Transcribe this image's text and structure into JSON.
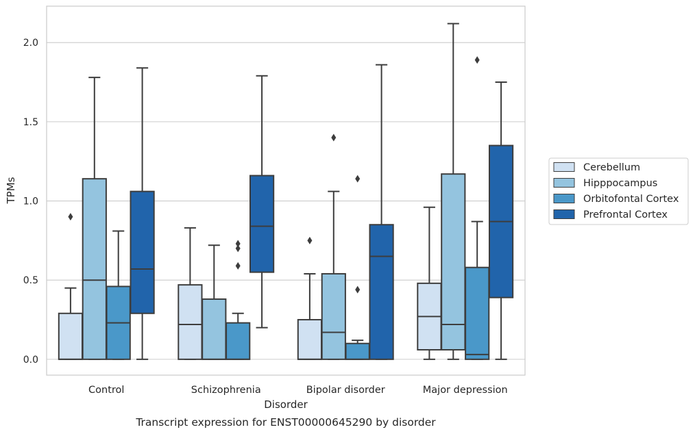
{
  "chart_data": {
    "type": "boxplot",
    "title": "",
    "caption": "Transcript expression for ENST00000645290 by disorder",
    "xlabel": "Disorder",
    "ylabel": "TPMs",
    "ylim": [
      -0.1,
      2.23
    ],
    "yticks": [
      "0.0",
      "0.5",
      "1.0",
      "1.5",
      "2.0"
    ],
    "grid": "horizontal",
    "legend_position": "right",
    "categories": [
      "Control",
      "Schizophrenia",
      "Bipolar disorder",
      "Major depression"
    ],
    "series": [
      {
        "name": "Cerebellum",
        "color": "#d0e1f2",
        "boxes": [
          {
            "low": 0.0,
            "q1": 0.0,
            "median": 0.0,
            "q3": 0.29,
            "high": 0.45,
            "outliers": [
              0.9
            ]
          },
          {
            "low": 0.0,
            "q1": 0.0,
            "median": 0.22,
            "q3": 0.47,
            "high": 0.83,
            "outliers": []
          },
          {
            "low": 0.0,
            "q1": 0.0,
            "median": 0.0,
            "q3": 0.25,
            "high": 0.54,
            "outliers": [
              0.75
            ]
          },
          {
            "low": 0.0,
            "q1": 0.06,
            "median": 0.27,
            "q3": 0.48,
            "high": 0.96,
            "outliers": []
          }
        ]
      },
      {
        "name": "Hipppocampus",
        "color": "#94c4df",
        "boxes": [
          {
            "low": 0.0,
            "q1": 0.0,
            "median": 0.5,
            "q3": 1.14,
            "high": 1.78,
            "outliers": []
          },
          {
            "low": 0.0,
            "q1": 0.0,
            "median": 0.0,
            "q3": 0.38,
            "high": 0.72,
            "outliers": []
          },
          {
            "low": 0.0,
            "q1": 0.0,
            "median": 0.17,
            "q3": 0.54,
            "high": 1.06,
            "outliers": [
              1.4
            ]
          },
          {
            "low": 0.0,
            "q1": 0.06,
            "median": 0.22,
            "q3": 1.17,
            "high": 2.12,
            "outliers": []
          }
        ]
      },
      {
        "name": "Orbitofontal Cortex",
        "color": "#4a98c9",
        "boxes": [
          {
            "low": 0.0,
            "q1": 0.0,
            "median": 0.23,
            "q3": 0.46,
            "high": 0.81,
            "outliers": []
          },
          {
            "low": 0.0,
            "q1": 0.0,
            "median": 0.0,
            "q3": 0.23,
            "high": 0.29,
            "outliers": [
              0.59,
              0.7,
              0.73
            ]
          },
          {
            "low": 0.0,
            "q1": 0.0,
            "median": 0.0,
            "q3": 0.1,
            "high": 0.12,
            "outliers": [
              0.44,
              1.14
            ]
          },
          {
            "low": 0.0,
            "q1": 0.0,
            "median": 0.03,
            "q3": 0.58,
            "high": 0.87,
            "outliers": [
              1.89
            ]
          }
        ]
      },
      {
        "name": "Prefrontal Cortex",
        "color": "#2164ab",
        "boxes": [
          {
            "low": 0.0,
            "q1": 0.29,
            "median": 0.57,
            "q3": 1.06,
            "high": 1.84,
            "outliers": []
          },
          {
            "low": 0.2,
            "q1": 0.55,
            "median": 0.84,
            "q3": 1.16,
            "high": 1.79,
            "outliers": []
          },
          {
            "low": 0.0,
            "q1": 0.0,
            "median": 0.65,
            "q3": 0.85,
            "high": 1.86,
            "outliers": []
          },
          {
            "low": 0.0,
            "q1": 0.39,
            "median": 0.87,
            "q3": 1.35,
            "high": 1.75,
            "outliers": []
          }
        ]
      }
    ]
  }
}
